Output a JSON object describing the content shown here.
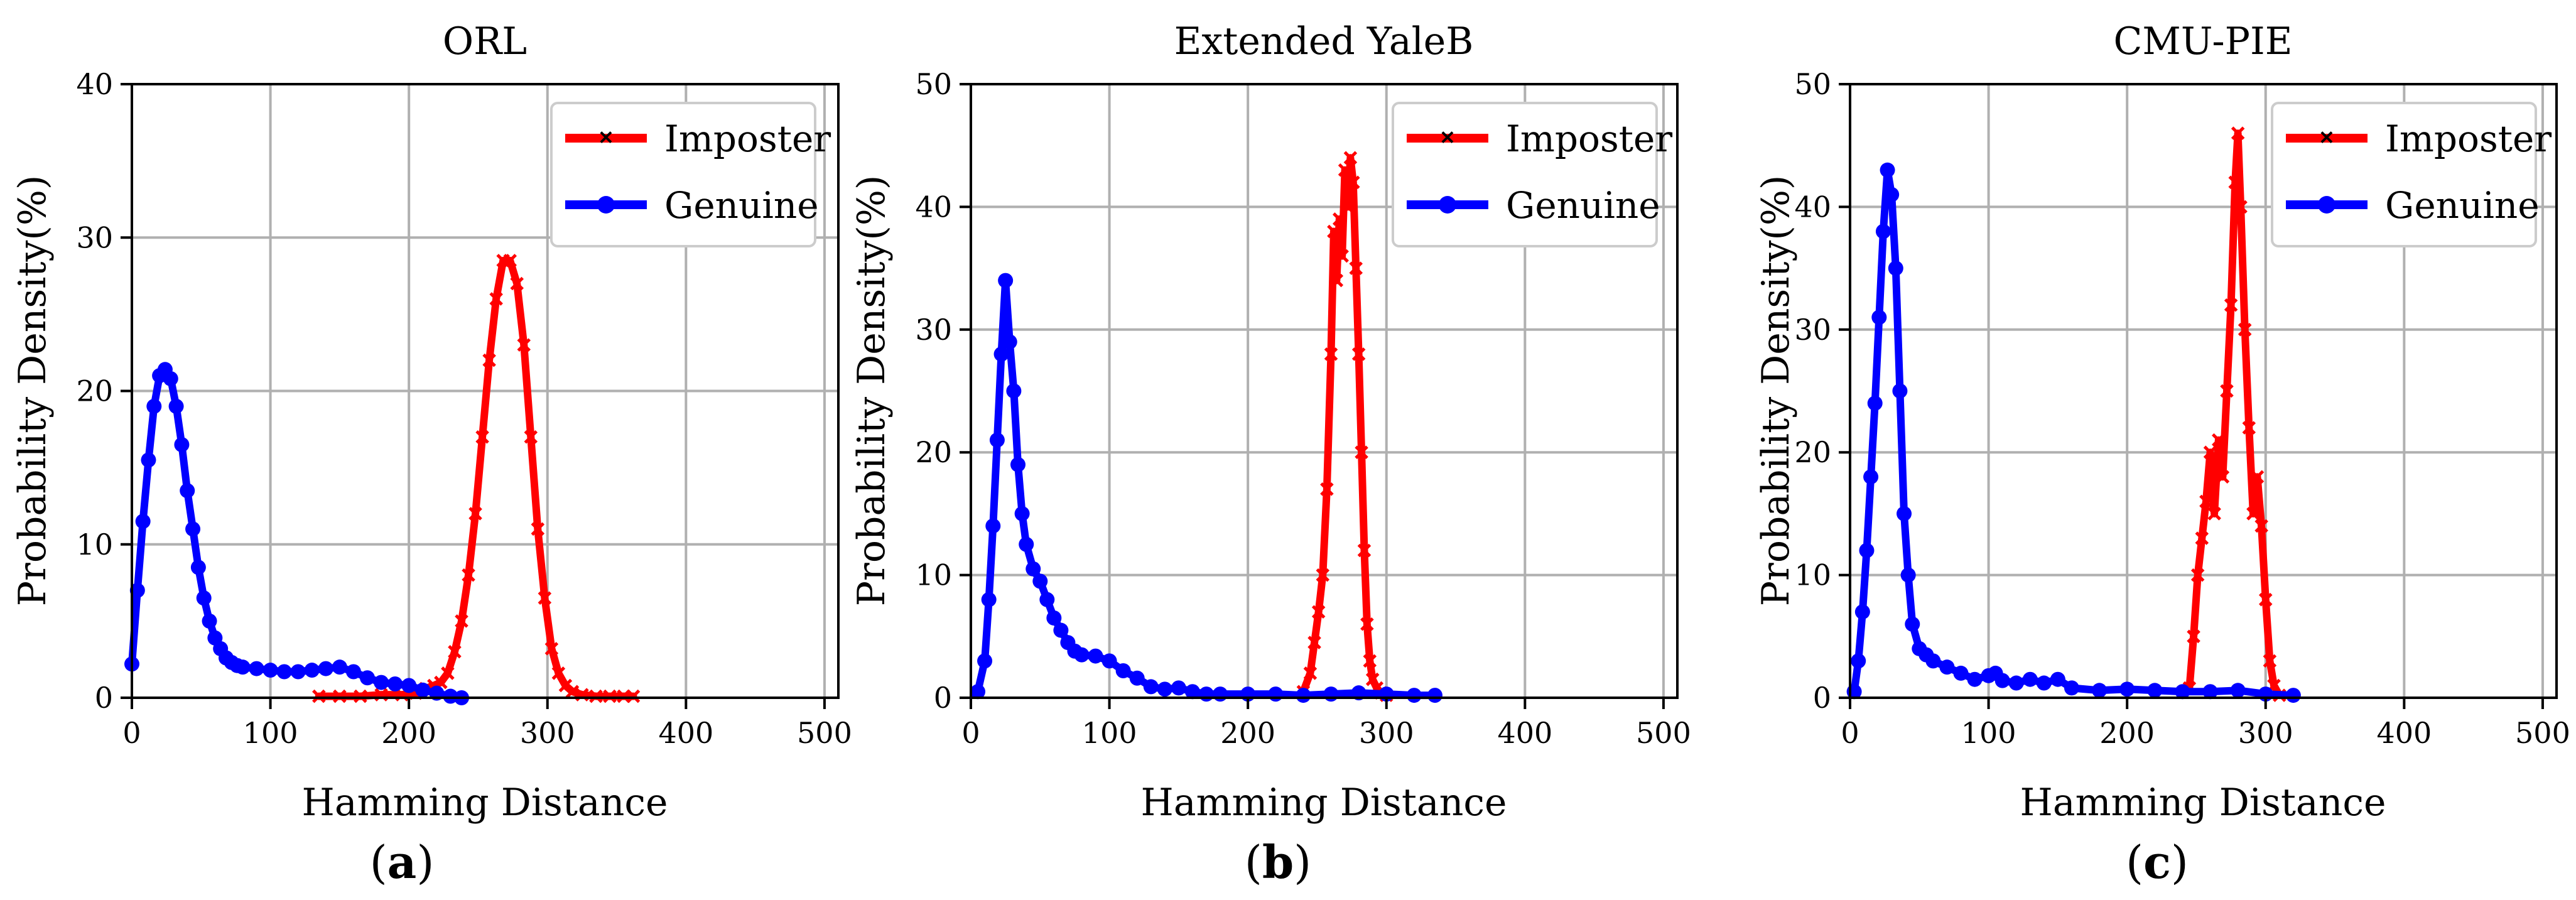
{
  "figure": {
    "panel_labels": [
      {
        "prefix": "(",
        "letter": "a",
        "suffix": ")"
      },
      {
        "prefix": "(",
        "letter": "b",
        "suffix": ")"
      },
      {
        "prefix": "(",
        "letter": "c",
        "suffix": ")"
      }
    ]
  },
  "colors": {
    "imposter": "#ff0000",
    "genuine": "#0000ff"
  },
  "chart_data": [
    {
      "type": "line",
      "title": "ORL",
      "xlabel": "Hamming Distance",
      "ylabel": "Probability Density(%)",
      "xlim": [
        0,
        510
      ],
      "ylim": [
        0,
        40
      ],
      "xticks": [
        0,
        100,
        200,
        300,
        400,
        500
      ],
      "yticks": [
        0,
        10,
        20,
        30,
        40
      ],
      "grid": true,
      "legend": "top-right",
      "series": [
        {
          "name": "Imposter",
          "color": "#ff0000",
          "marker": "x",
          "x": [
            135,
            150,
            165,
            180,
            195,
            205,
            212,
            218,
            223,
            228,
            233,
            238,
            243,
            248,
            253,
            258,
            263,
            268,
            273,
            278,
            283,
            288,
            293,
            298,
            303,
            308,
            313,
            318,
            325,
            335,
            345,
            355,
            362
          ],
          "y": [
            0.1,
            0.1,
            0.1,
            0.2,
            0.2,
            0.3,
            0.6,
            0.8,
            1.0,
            1.6,
            3.0,
            5.0,
            8.0,
            12.0,
            17.0,
            22.0,
            26.0,
            28.5,
            28.5,
            27.0,
            23.0,
            17.0,
            11.0,
            6.5,
            3.2,
            1.6,
            0.8,
            0.4,
            0.2,
            0.1,
            0.1,
            0.1,
            0.1
          ]
        },
        {
          "name": "Genuine",
          "color": "#0000ff",
          "marker": "o",
          "x": [
            0,
            4,
            8,
            12,
            16,
            20,
            24,
            28,
            32,
            36,
            40,
            44,
            48,
            52,
            56,
            60,
            64,
            68,
            72,
            76,
            80,
            90,
            100,
            110,
            120,
            130,
            140,
            150,
            160,
            170,
            180,
            190,
            200,
            210,
            220,
            230,
            238
          ],
          "y": [
            2.2,
            7.0,
            11.5,
            15.5,
            19.0,
            21.0,
            21.4,
            20.8,
            19.0,
            16.5,
            13.5,
            11.0,
            8.5,
            6.5,
            5.0,
            3.9,
            3.2,
            2.6,
            2.3,
            2.1,
            2.0,
            1.9,
            1.8,
            1.7,
            1.7,
            1.8,
            1.9,
            2.0,
            1.7,
            1.3,
            1.0,
            0.9,
            0.8,
            0.5,
            0.3,
            0.1,
            0.0
          ]
        }
      ]
    },
    {
      "type": "line",
      "title": "Extended YaleB",
      "xlabel": "Hamming Distance",
      "ylabel": "Probability Density(%)",
      "xlim": [
        0,
        510
      ],
      "ylim": [
        0,
        50
      ],
      "xticks": [
        0,
        100,
        200,
        300,
        400,
        500
      ],
      "yticks": [
        0,
        10,
        20,
        30,
        40,
        50
      ],
      "grid": true,
      "legend": "top-right",
      "series": [
        {
          "name": "Imposter",
          "color": "#ff0000",
          "marker": "x",
          "x": [
            240,
            245,
            248,
            251,
            254,
            257,
            260,
            262,
            264,
            266,
            268,
            270,
            272,
            274,
            276,
            278,
            280,
            282,
            284,
            286,
            288,
            290,
            293,
            296,
            300
          ],
          "y": [
            0.5,
            2.0,
            4.5,
            7.0,
            10.0,
            17.0,
            28.0,
            38.0,
            34.0,
            39.0,
            36.0,
            43.0,
            40.0,
            44.0,
            42.0,
            35.0,
            28.0,
            20.0,
            12.0,
            6.0,
            3.0,
            1.5,
            0.8,
            0.4,
            0.2
          ]
        },
        {
          "name": "Genuine",
          "color": "#0000ff",
          "marker": "o",
          "x": [
            5,
            10,
            13,
            16,
            19,
            22,
            25,
            28,
            31,
            34,
            37,
            40,
            45,
            50,
            55,
            60,
            65,
            70,
            75,
            80,
            90,
            100,
            110,
            120,
            130,
            140,
            150,
            160,
            170,
            180,
            200,
            220,
            240,
            260,
            280,
            300,
            320,
            335
          ],
          "y": [
            0.5,
            3.0,
            8.0,
            14.0,
            21.0,
            28.0,
            34.0,
            29.0,
            25.0,
            19.0,
            15.0,
            12.5,
            10.5,
            9.5,
            8.0,
            6.5,
            5.5,
            4.5,
            3.8,
            3.5,
            3.4,
            3.0,
            2.2,
            1.6,
            0.9,
            0.7,
            0.8,
            0.5,
            0.3,
            0.3,
            0.3,
            0.3,
            0.2,
            0.3,
            0.4,
            0.3,
            0.2,
            0.2
          ]
        }
      ]
    },
    {
      "type": "line",
      "title": "CMU-PIE",
      "xlabel": "Hamming Distance",
      "ylabel": "Probability Density(%)",
      "xlim": [
        0,
        510
      ],
      "ylim": [
        0,
        50
      ],
      "xticks": [
        0,
        100,
        200,
        300,
        400,
        500
      ],
      "yticks": [
        0,
        10,
        20,
        30,
        40,
        50
      ],
      "grid": true,
      "legend": "top-right",
      "series": [
        {
          "name": "Imposter",
          "color": "#ff0000",
          "marker": "x",
          "x": [
            245,
            248,
            251,
            254,
            257,
            260,
            263,
            266,
            269,
            272,
            275,
            278,
            280,
            282,
            285,
            288,
            291,
            294,
            297,
            300,
            303,
            306,
            310
          ],
          "y": [
            0.8,
            5.0,
            10.0,
            13.0,
            16.0,
            20.0,
            15.0,
            21.0,
            18.0,
            25.0,
            32.0,
            42.0,
            46.0,
            40.0,
            30.0,
            22.0,
            15.0,
            18.0,
            14.0,
            8.0,
            3.0,
            1.0,
            0.2
          ]
        },
        {
          "name": "Genuine",
          "color": "#0000ff",
          "marker": "o",
          "x": [
            3,
            6,
            9,
            12,
            15,
            18,
            21,
            24,
            27,
            30,
            33,
            36,
            39,
            42,
            45,
            50,
            55,
            60,
            70,
            80,
            90,
            100,
            105,
            110,
            120,
            130,
            140,
            150,
            160,
            180,
            200,
            220,
            240,
            260,
            280,
            300,
            320
          ],
          "y": [
            0.5,
            3.0,
            7.0,
            12.0,
            18.0,
            24.0,
            31.0,
            38.0,
            43.0,
            41.0,
            35.0,
            25.0,
            15.0,
            10.0,
            6.0,
            4.0,
            3.5,
            3.0,
            2.5,
            2.0,
            1.5,
            1.8,
            2.0,
            1.4,
            1.2,
            1.5,
            1.2,
            1.5,
            0.8,
            0.6,
            0.7,
            0.6,
            0.5,
            0.5,
            0.6,
            0.3,
            0.2
          ]
        }
      ]
    }
  ]
}
